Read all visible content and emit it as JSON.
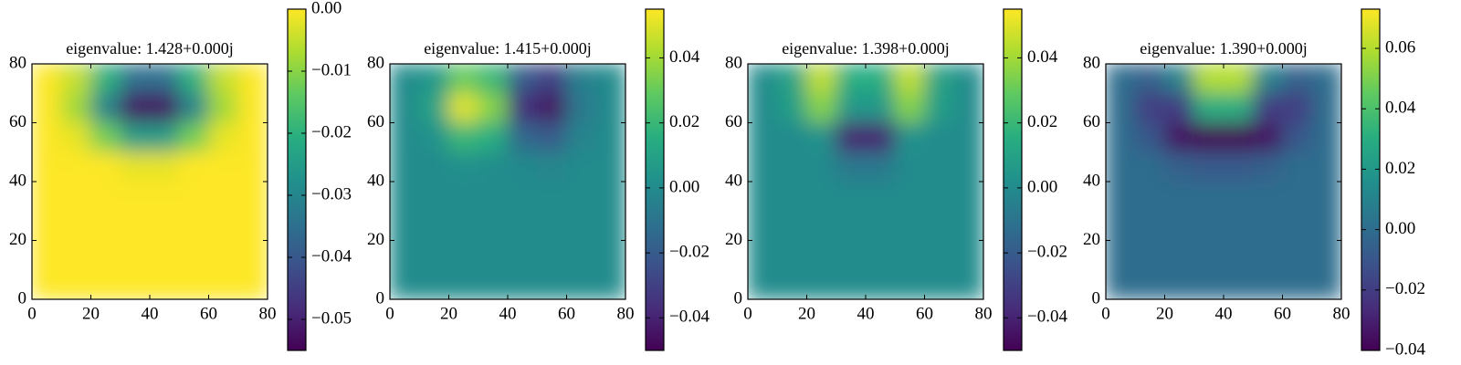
{
  "chart_data": [
    {
      "type": "heatmap",
      "title": "eigenvalue: 1.428+0.000j",
      "colormap": "viridis",
      "xlim": [
        0,
        80
      ],
      "ylim": [
        0,
        80
      ],
      "xticks": [
        0,
        20,
        40,
        60,
        80
      ],
      "yticks": [
        0,
        20,
        40,
        60,
        80
      ],
      "x": [
        5,
        15,
        25,
        35,
        45,
        55,
        65,
        75
      ],
      "y": [
        75,
        65,
        55,
        45,
        35,
        25,
        15,
        5
      ],
      "z": [
        [
          0,
          -0.005,
          -0.02,
          -0.035,
          -0.035,
          -0.02,
          -0.005,
          0
        ],
        [
          0,
          -0.008,
          -0.03,
          -0.052,
          -0.052,
          -0.03,
          -0.008,
          0
        ],
        [
          0,
          -0.002,
          -0.012,
          -0.025,
          -0.025,
          -0.012,
          -0.002,
          0
        ],
        [
          0,
          0,
          0,
          -0.002,
          -0.002,
          0,
          0,
          0
        ],
        [
          0,
          0,
          0,
          0,
          0,
          0,
          0,
          0
        ],
        [
          0,
          0,
          0,
          0,
          0,
          0,
          0,
          0
        ],
        [
          0,
          0,
          0,
          0,
          0,
          0,
          0,
          0
        ],
        [
          0,
          0,
          0,
          0,
          0,
          0,
          0,
          0
        ]
      ],
      "clim": [
        -0.055,
        0
      ],
      "cticks": [
        {
          "value": 0,
          "label": "0.00"
        },
        {
          "value": -0.01,
          "label": "−0.01"
        },
        {
          "value": -0.02,
          "label": "−0.02"
        },
        {
          "value": -0.03,
          "label": "−0.03"
        },
        {
          "value": -0.04,
          "label": "−0.04"
        },
        {
          "value": -0.05,
          "label": "−0.05"
        }
      ]
    },
    {
      "type": "heatmap",
      "title": "eigenvalue: 1.415+0.000j",
      "colormap": "viridis",
      "xlim": [
        0,
        80
      ],
      "ylim": [
        0,
        80
      ],
      "xticks": [
        0,
        20,
        40,
        60,
        80
      ],
      "yticks": [
        0,
        20,
        40,
        60,
        80
      ],
      "x": [
        5,
        15,
        25,
        35,
        45,
        55,
        65,
        75
      ],
      "y": [
        75,
        65,
        55,
        45,
        35,
        25,
        15,
        5
      ],
      "z": [
        [
          0,
          0.005,
          0.03,
          0.02,
          -0.02,
          -0.03,
          -0.005,
          0
        ],
        [
          0,
          0.01,
          0.05,
          0.035,
          -0.035,
          -0.045,
          -0.008,
          0
        ],
        [
          0,
          0.003,
          0.02,
          0.015,
          -0.015,
          -0.02,
          -0.003,
          0
        ],
        [
          0,
          0,
          0.002,
          0.001,
          -0.001,
          -0.002,
          0,
          0
        ],
        [
          0,
          0,
          0,
          0,
          0,
          0,
          0,
          0
        ],
        [
          0,
          0,
          0,
          0,
          0,
          0,
          0,
          0
        ],
        [
          0,
          0,
          0,
          0,
          0,
          0,
          0,
          0
        ],
        [
          0,
          0,
          0,
          0,
          0,
          0,
          0,
          0
        ]
      ],
      "clim": [
        -0.05,
        0.055
      ],
      "cticks": [
        {
          "value": -0.04,
          "label": "−0.04"
        },
        {
          "value": -0.02,
          "label": "−0.02"
        },
        {
          "value": 0,
          "label": "0.00"
        },
        {
          "value": 0.02,
          "label": "0.02"
        },
        {
          "value": 0.04,
          "label": "0.04"
        }
      ]
    },
    {
      "type": "heatmap",
      "title": "eigenvalue: 1.398+0.000j",
      "colormap": "viridis",
      "xlim": [
        0,
        80
      ],
      "ylim": [
        0,
        80
      ],
      "xticks": [
        0,
        20,
        40,
        60,
        80
      ],
      "yticks": [
        0,
        20,
        40,
        60,
        80
      ],
      "x": [
        5,
        15,
        25,
        35,
        45,
        55,
        65,
        75
      ],
      "y": [
        75,
        65,
        55,
        45,
        35,
        25,
        15,
        5
      ],
      "z": [
        [
          0,
          0.01,
          0.045,
          0.015,
          0.015,
          0.045,
          0.01,
          0
        ],
        [
          0,
          0.008,
          0.035,
          0.005,
          0.005,
          0.035,
          0.008,
          0
        ],
        [
          0,
          0,
          0.003,
          -0.04,
          -0.04,
          0.003,
          0,
          0
        ],
        [
          0,
          0,
          0,
          -0.008,
          -0.008,
          0,
          0,
          0
        ],
        [
          0,
          0,
          0,
          0,
          0,
          0,
          0,
          0
        ],
        [
          0,
          0,
          0,
          0,
          0,
          0,
          0,
          0
        ],
        [
          0,
          0,
          0,
          0,
          0,
          0,
          0,
          0
        ],
        [
          0,
          0,
          0,
          0,
          0,
          0,
          0,
          0
        ]
      ],
      "clim": [
        -0.05,
        0.055
      ],
      "cticks": [
        {
          "value": -0.04,
          "label": "−0.04"
        },
        {
          "value": -0.02,
          "label": "−0.02"
        },
        {
          "value": 0,
          "label": "0.00"
        },
        {
          "value": 0.02,
          "label": "0.02"
        },
        {
          "value": 0.04,
          "label": "0.04"
        }
      ]
    },
    {
      "type": "heatmap",
      "title": "eigenvalue: 1.390+0.000j",
      "colormap": "viridis",
      "xlim": [
        0,
        80
      ],
      "ylim": [
        0,
        80
      ],
      "xticks": [
        0,
        20,
        40,
        60,
        80
      ],
      "yticks": [
        0,
        20,
        40,
        60,
        80
      ],
      "x": [
        5,
        15,
        25,
        35,
        45,
        55,
        65,
        75
      ],
      "y": [
        75,
        65,
        55,
        45,
        35,
        25,
        15,
        5
      ],
      "z": [
        [
          0,
          -0.005,
          0.01,
          0.06,
          0.06,
          0.01,
          -0.005,
          0
        ],
        [
          0,
          -0.02,
          -0.02,
          0.03,
          0.03,
          -0.02,
          -0.02,
          0
        ],
        [
          0,
          -0.01,
          -0.035,
          -0.04,
          -0.04,
          -0.035,
          -0.01,
          0
        ],
        [
          0,
          0,
          -0.005,
          -0.008,
          -0.008,
          -0.005,
          0,
          0
        ],
        [
          0,
          0,
          0,
          0,
          0,
          0,
          0,
          0
        ],
        [
          0,
          0,
          0,
          0,
          0,
          0,
          0,
          0
        ],
        [
          0,
          0,
          0,
          0,
          0,
          0,
          0,
          0
        ],
        [
          0,
          0,
          0,
          0,
          0,
          0,
          0,
          0
        ]
      ],
      "clim": [
        -0.04,
        0.073
      ],
      "cticks": [
        {
          "value": -0.04,
          "label": "−0.04"
        },
        {
          "value": -0.02,
          "label": "−0.02"
        },
        {
          "value": 0,
          "label": "0.00"
        },
        {
          "value": 0.02,
          "label": "0.02"
        },
        {
          "value": 0.04,
          "label": "0.04"
        },
        {
          "value": 0.06,
          "label": "0.06"
        }
      ]
    }
  ]
}
